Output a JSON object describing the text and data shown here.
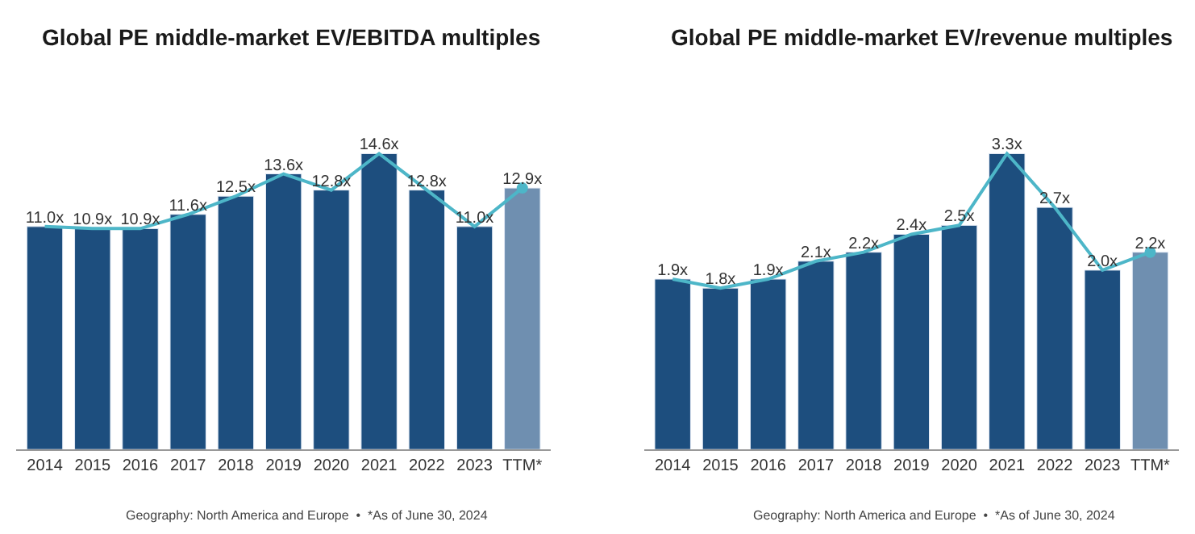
{
  "chart_data": [
    {
      "type": "bar",
      "title": "Global PE middle-market EV/EBITDA multiples",
      "annotations": [
        "Geography: North America and Europe  •  *As of June 30, 2024"
      ],
      "categories": [
        "2014",
        "2015",
        "2016",
        "2017",
        "2018",
        "2019",
        "2020",
        "2021",
        "2022",
        "2023",
        "TTM*"
      ],
      "series": [
        {
          "colors": [
            "#1d4e7e",
            "#1d4e7e",
            "#1d4e7e",
            "#1d4e7e",
            "#1d4e7e",
            "#1d4e7e",
            "#1d4e7e",
            "#1d4e7e",
            "#1d4e7e",
            "#1d4e7e",
            "#6f8fb0"
          ],
          "values": [
            11.0,
            10.9,
            10.9,
            11.6,
            12.5,
            13.6,
            12.8,
            14.6,
            12.8,
            11.0,
            12.9
          ],
          "value_labels": [
            "11.0x",
            "10.9x",
            "10.9x",
            "11.6x",
            "12.5x",
            "13.6x",
            "12.8x",
            "14.6x",
            "12.8x",
            "11.0x",
            "12.9x"
          ]
        },
        {
          "type": "line",
          "color": "#4db6c8",
          "marker": "none",
          "values": [
            11.0,
            10.9,
            10.9,
            11.6,
            12.5,
            13.6,
            12.8,
            14.6,
            12.8,
            11.0,
            12.9
          ]
        },
        {
          "type": "scatter",
          "color": "#4db6c8",
          "marker": "circle",
          "values": [
            null,
            null,
            null,
            null,
            null,
            null,
            null,
            null,
            null,
            null,
            12.9
          ]
        }
      ]
    },
    {
      "type": "bar",
      "title": "Global PE middle-market EV/revenue multiples",
      "annotations": [
        "Geography: North America and Europe  •  *As of June 30, 2024"
      ],
      "categories": [
        "2014",
        "2015",
        "2016",
        "2017",
        "2018",
        "2019",
        "2020",
        "2021",
        "2022",
        "2023",
        "TTM*"
      ],
      "series": [
        {
          "colors": [
            "#1d4e7e",
            "#1d4e7e",
            "#1d4e7e",
            "#1d4e7e",
            "#1d4e7e",
            "#1d4e7e",
            "#1d4e7e",
            "#1d4e7e",
            "#1d4e7e",
            "#1d4e7e",
            "#6f8fb0"
          ],
          "values": [
            1.9,
            1.8,
            1.9,
            2.1,
            2.2,
            2.4,
            2.5,
            3.3,
            2.7,
            2.0,
            2.2
          ],
          "value_labels": [
            "1.9x",
            "1.8x",
            "1.9x",
            "2.1x",
            "2.2x",
            "2.4x",
            "2.5x",
            "3.3x",
            "2.7x",
            "2.0x",
            "2.2x"
          ]
        },
        {
          "type": "line",
          "color": "#4db6c8",
          "marker": "none",
          "values": [
            1.9,
            1.8,
            1.9,
            2.1,
            2.2,
            2.4,
            2.5,
            3.3,
            2.7,
            2.0,
            2.2
          ]
        },
        {
          "type": "scatter",
          "color": "#4db6c8",
          "marker": "circle",
          "values": [
            null,
            null,
            null,
            null,
            null,
            null,
            null,
            null,
            null,
            null,
            2.2
          ]
        }
      ]
    }
  ]
}
